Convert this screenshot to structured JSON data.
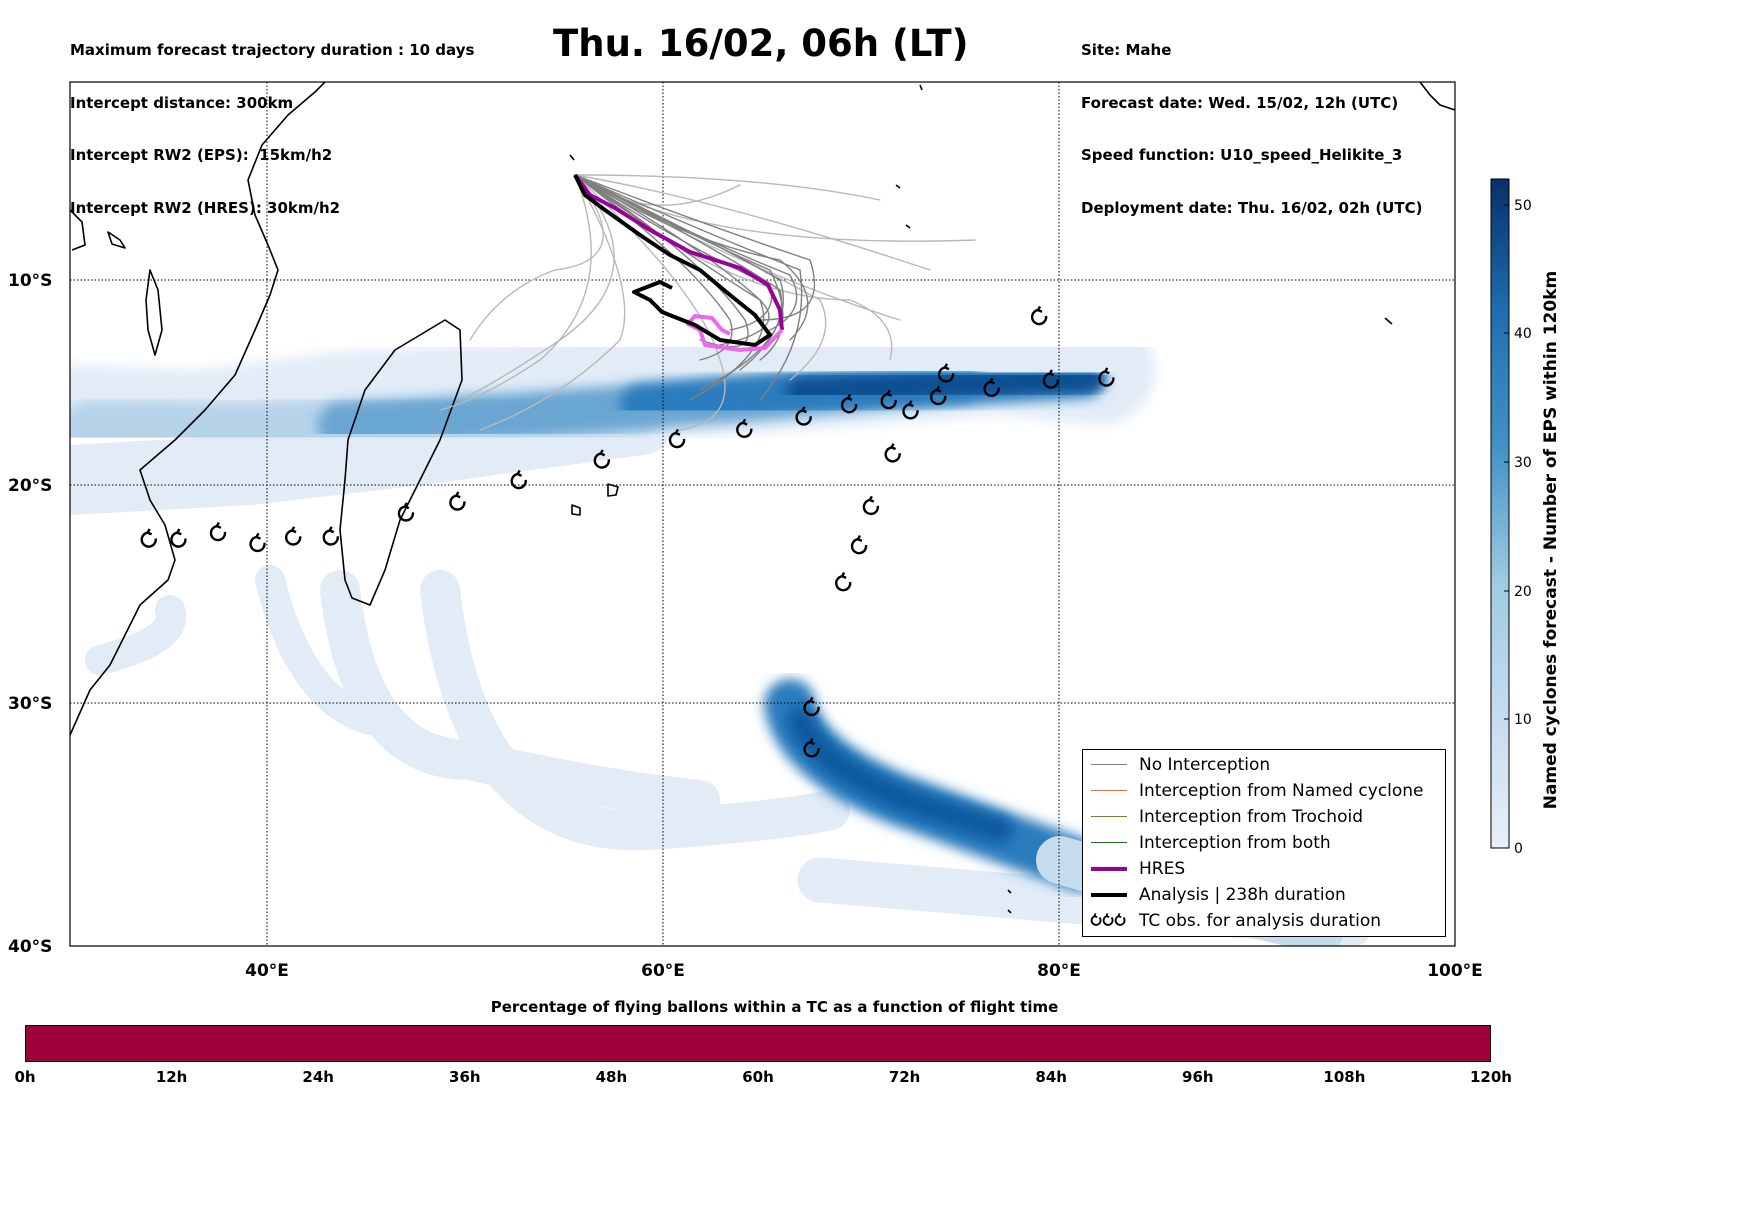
{
  "header": {
    "title": "Thu. 16/02, 06h (LT)",
    "left_lines": [
      "Maximum forecast trajectory duration : 10 days",
      "Intercept distance: 300km",
      "Intercept RW2 (EPS):  15km/h2",
      "Intercept RW2 (HRES): 30km/h2"
    ],
    "right_lines": [
      "Site: Mahe",
      "Forecast date: Wed. 15/02, 12h (UTC)",
      "Speed function: U10_speed_Helikite_3",
      "Deployment date: Thu. 16/02, 02h (UTC)"
    ]
  },
  "map": {
    "lon_range": [
      30,
      100
    ],
    "lat_range": [
      -40,
      -0.5
    ],
    "lat_labels": [
      "10°S",
      "20°S",
      "30°S",
      "40°S"
    ],
    "lon_labels": [
      "40°E",
      "60°E",
      "80°E",
      "100°E"
    ],
    "release_site": "Mahe",
    "release_point": [
      55.5,
      -4.6
    ],
    "colors": {
      "hres": "#990099",
      "hres_light": "#ee66ee",
      "analysis": "#000000",
      "no_interception": "#808080",
      "interception_named_cyclone": "#ff6600",
      "interception_trochoid": "#808000",
      "interception_both": "#008000"
    },
    "tc_observations": [
      [
        34,
        -22.5
      ],
      [
        35.5,
        -22.5
      ],
      [
        37.5,
        -22.2
      ],
      [
        39.5,
        -22.7
      ],
      [
        41.3,
        -22.4
      ],
      [
        43.2,
        -22.4
      ],
      [
        47,
        -21.3
      ],
      [
        49.6,
        -20.8
      ],
      [
        52.7,
        -19.8
      ],
      [
        56.9,
        -18.8
      ],
      [
        60.7,
        -17.8
      ],
      [
        64.1,
        -17.3
      ],
      [
        67.1,
        -16.7
      ],
      [
        69.4,
        -16.1
      ],
      [
        71.4,
        -15.9
      ],
      [
        72.5,
        -16.4
      ],
      [
        73.9,
        -15.7
      ],
      [
        74.3,
        -14.6
      ],
      [
        76.6,
        -15.3
      ],
      [
        79.6,
        -14.9
      ],
      [
        82.4,
        -14.8
      ],
      [
        79.0,
        -11.8
      ],
      [
        71.6,
        -18.5
      ],
      [
        70.5,
        -21.0
      ],
      [
        69.9,
        -22.8
      ],
      [
        69.1,
        -24.5
      ],
      [
        67.5,
        -30.2
      ],
      [
        67.5,
        -31.9
      ]
    ]
  },
  "colorbar": {
    "label": "Named cyclones forecast - Number of EPS within 120km",
    "ticks": [
      "0",
      "10",
      "20",
      "30",
      "40",
      "50"
    ],
    "range": [
      0,
      52
    ]
  },
  "legend": {
    "items": [
      {
        "label": "No Interception",
        "color": "#808080",
        "width": 1.5
      },
      {
        "label": "Interception from Named cyclone",
        "color": "#ff6600",
        "width": 1.5
      },
      {
        "label": "Interception from Trochoid",
        "color": "#808000",
        "width": 1.5
      },
      {
        "label": "Interception from both",
        "color": "#008000",
        "width": 1.5
      },
      {
        "label": "HRES",
        "color": "#990099",
        "width": 4
      },
      {
        "label": "Analysis | 238h duration",
        "color": "#000000",
        "width": 4
      },
      {
        "label": "TC obs. for analysis duration",
        "color": "#000000",
        "width": 0
      }
    ]
  },
  "timebar": {
    "title": "Percentage of flying ballons within a TC as a function of flight time",
    "labels": [
      "0h",
      "12h",
      "24h",
      "36h",
      "48h",
      "60h",
      "72h",
      "84h",
      "96h",
      "108h",
      "120h"
    ],
    "percent_in_tc": [
      100,
      100,
      100,
      100,
      100,
      100,
      100,
      100,
      100,
      100,
      100
    ],
    "color": "#a0003c"
  }
}
